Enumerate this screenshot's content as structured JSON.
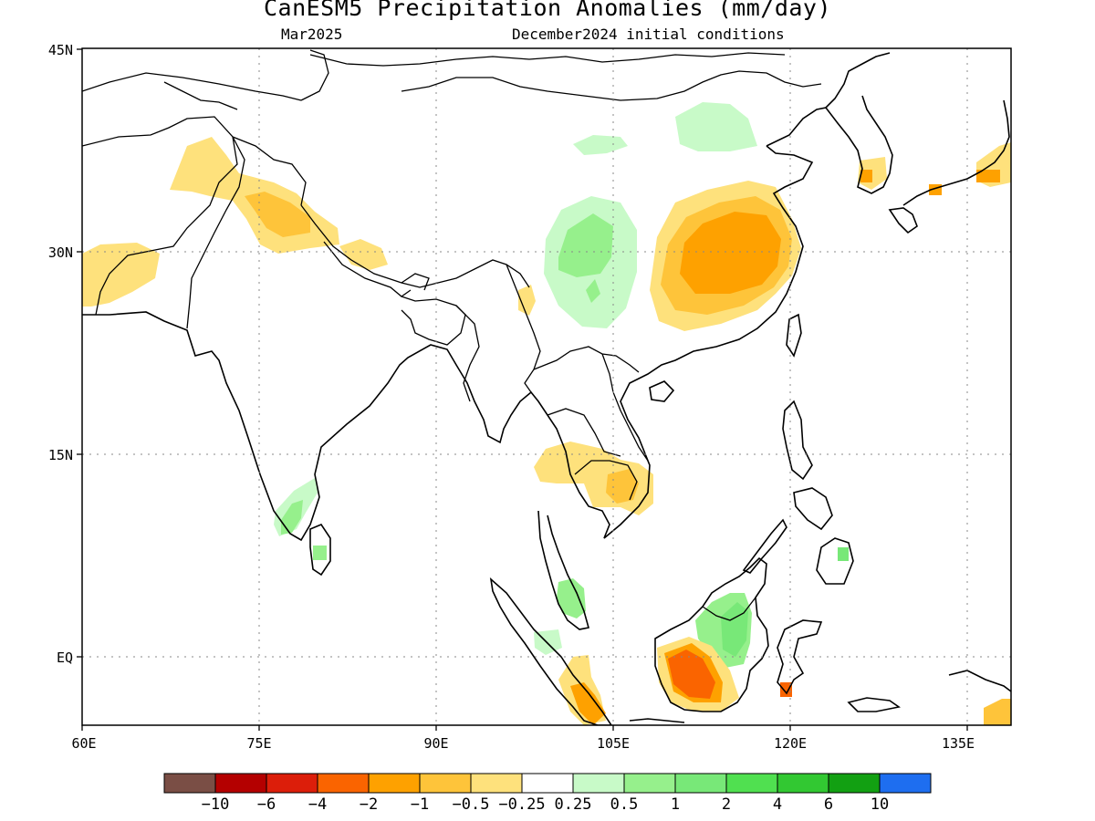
{
  "title": "CanESM5 Precipitation Anomalies (mm/day)",
  "subtitle_left": "Mar2025",
  "subtitle_right": "December2024 initial conditions",
  "lat_ticks": [
    "45N",
    "30N",
    "15N",
    "EQ"
  ],
  "lon_ticks": [
    "60E",
    "75E",
    "90E",
    "105E",
    "120E",
    "135E"
  ],
  "colorbar": {
    "colors": [
      "#7a4e45",
      "#b40000",
      "#dc1e0a",
      "#fa6400",
      "#fea100",
      "#fec43a",
      "#fee17c",
      "#ffffff",
      "#c8fac8",
      "#96f08c",
      "#78e878",
      "#50e050",
      "#32c832",
      "#12a012",
      "#1e6ef0"
    ],
    "labels": [
      "−10",
      "−6",
      "−4",
      "−2",
      "−1",
      "−0.5",
      "−0.25",
      "0.25",
      "0.5",
      "1",
      "2",
      "4",
      "6",
      "10"
    ]
  },
  "legend_colors": {
    "light_yellow": "#fee17c",
    "yellow_orange": "#fec43a",
    "orange": "#fea100",
    "red_orange": "#fa6400",
    "pale_green": "#c8fac8",
    "light_green": "#96f08c",
    "green": "#78e878"
  }
}
